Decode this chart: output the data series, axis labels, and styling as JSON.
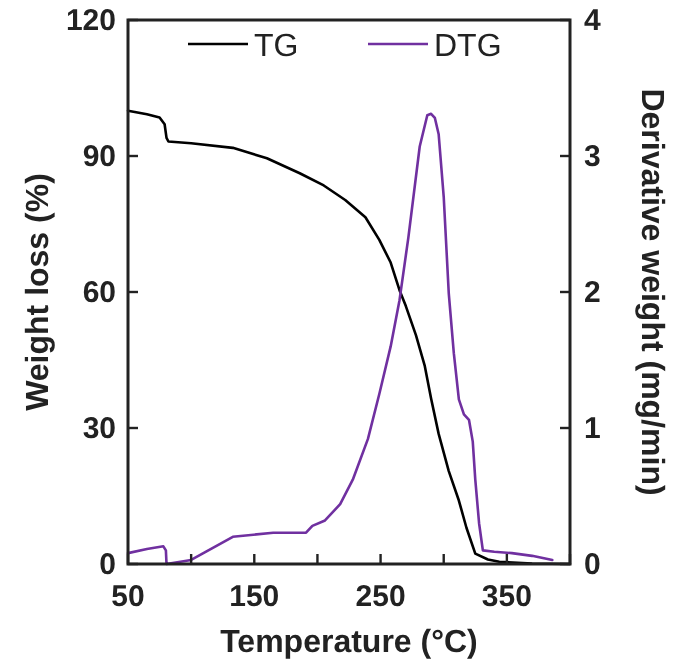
{
  "chart_data": {
    "type": "line",
    "xlabel": "Temperature (°C)",
    "ylabel": "Weight loss (%)",
    "y2label": "Derivative weight (mg/min)",
    "xlim": [
      50,
      400
    ],
    "xticks": [
      50,
      {
        "value": 100,
        "label": null
      },
      150,
      {
        "value": 200,
        "label": null
      },
      250,
      {
        "value": 300,
        "label": null
      },
      350,
      {
        "value": 400,
        "label": null
      }
    ],
    "ylim": [
      0,
      120
    ],
    "yticks": [
      0,
      30,
      60,
      90,
      120
    ],
    "y2lim": [
      0,
      4
    ],
    "y2ticks": [
      0,
      1,
      2,
      3,
      4
    ],
    "legend": "top",
    "grid": false,
    "line_style": "solid",
    "series": [
      {
        "name": "TG",
        "color": "#000000",
        "x": [
          50,
          65,
          75,
          79,
          80.5,
          82,
          100,
          133,
          160,
          186,
          205,
          222,
          238,
          249,
          258,
          265,
          270,
          278,
          285,
          290,
          296,
          304,
          312,
          318,
          325,
          335,
          344,
          370,
          400
        ],
        "values": [
          100,
          99.2,
          98.5,
          97,
          94,
          93.2,
          92.8,
          91.8,
          89.5,
          86.2,
          83.5,
          80.3,
          76.5,
          71.5,
          66.5,
          60.4,
          56.9,
          50.5,
          43.7,
          36.5,
          28.7,
          20.5,
          14,
          8,
          2.3,
          1,
          0.5,
          0.1,
          0
        ]
      },
      {
        "name": "DTG",
        "color": "#7030a0",
        "axis": "y2",
        "x": [
          50,
          65,
          78,
          80,
          80.5,
          100,
          133,
          165,
          191,
          196,
          206,
          218,
          228,
          240,
          249,
          258,
          265,
          272,
          281,
          287,
          290,
          293,
          296,
          300,
          304,
          308,
          312,
          316,
          320,
          323,
          325,
          328,
          331,
          340,
          354,
          370,
          386
        ],
        "values": [
          0.08,
          0.11,
          0.13,
          0.1,
          0,
          0.03,
          0.2,
          0.23,
          0.23,
          0.28,
          0.32,
          0.44,
          0.62,
          0.92,
          1.25,
          1.6,
          1.94,
          2.4,
          3.07,
          3.3,
          3.31,
          3.28,
          3.16,
          2.7,
          1.99,
          1.55,
          1.21,
          1.1,
          1.06,
          0.9,
          0.62,
          0.3,
          0.1,
          0.09,
          0.08,
          0.06,
          0.03
        ]
      }
    ]
  }
}
